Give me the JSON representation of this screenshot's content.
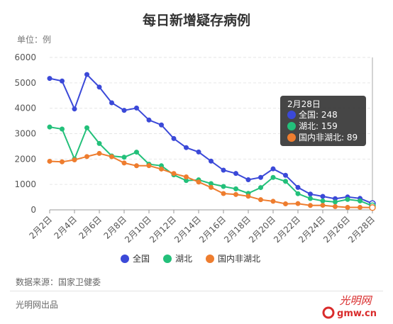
{
  "title": "每日新增疑存病例",
  "unit_label": "单位：例",
  "source_label": "数据来源：国家卫健委",
  "producer_label": "光明网出品",
  "logo": {
    "text": "光明网",
    "sub": "gmw.cn",
    "color": "#d92b2b"
  },
  "tooltip": {
    "date": "2月28日",
    "rows": [
      {
        "label": "全国: 248",
        "color": "#3b49d8"
      },
      {
        "label": "湖北: 159",
        "color": "#23c07a"
      },
      {
        "label": "国内非湖北: 89",
        "color": "#ee7d2f"
      }
    ]
  },
  "chart_data": {
    "type": "line",
    "title": "每日新增疑存病例",
    "xlabel": "",
    "ylabel": "",
    "ylim": [
      0,
      6000
    ],
    "yticks": [
      0,
      1000,
      2000,
      3000,
      4000,
      5000,
      6000
    ],
    "grid": true,
    "legend_position": "bottom",
    "x": [
      "2月2日",
      "2月3日",
      "2月4日",
      "2月5日",
      "2月6日",
      "2月7日",
      "2月8日",
      "2月9日",
      "2月10日",
      "2月11日",
      "2月12日",
      "2月13日",
      "2月14日",
      "2月15日",
      "2月16日",
      "2月17日",
      "2月18日",
      "2月19日",
      "2月20日",
      "2月21日",
      "2月22日",
      "2月23日",
      "2月24日",
      "2月25日",
      "2月26日",
      "2月27日",
      "2月28日"
    ],
    "x_tick_labels": [
      "2月2日",
      "2月4日",
      "2月6日",
      "2月8日",
      "2月10日",
      "2月12日",
      "2月14日",
      "2月16日",
      "2月18日",
      "2月20日",
      "2月22日",
      "2月24日",
      "2月26日",
      "2月28日"
    ],
    "series": [
      {
        "name": "全国",
        "color": "#3b49d8",
        "values": [
          5173,
          5072,
          3971,
          5328,
          4833,
          4214,
          3916,
          4008,
          3536,
          3342,
          2807,
          2450,
          2277,
          1918,
          1563,
          1432,
          1185,
          1277,
          1614,
          1361,
          882,
          620,
          530,
          439,
          508,
          452,
          248
        ]
      },
      {
        "name": "湖北",
        "color": "#23c07a",
        "values": [
          3260,
          3182,
          2004,
          3230,
          2612,
          2121,
          2071,
          2272,
          1796,
          1736,
          1377,
          1153,
          1181,
          1033,
          921,
          827,
          649,
          877,
          1277,
          1123,
          636,
          447,
          351,
          309,
          411,
          353,
          159
        ]
      },
      {
        "name": "国内非湖北",
        "color": "#ee7d2f",
        "values": [
          1913,
          1890,
          1967,
          2098,
          2221,
          2093,
          1845,
          1736,
          1740,
          1606,
          1430,
          1297,
          1096,
          885,
          642,
          605,
          536,
          400,
          337,
          238,
          246,
          173,
          179,
          130,
          97,
          99,
          89
        ]
      }
    ]
  }
}
